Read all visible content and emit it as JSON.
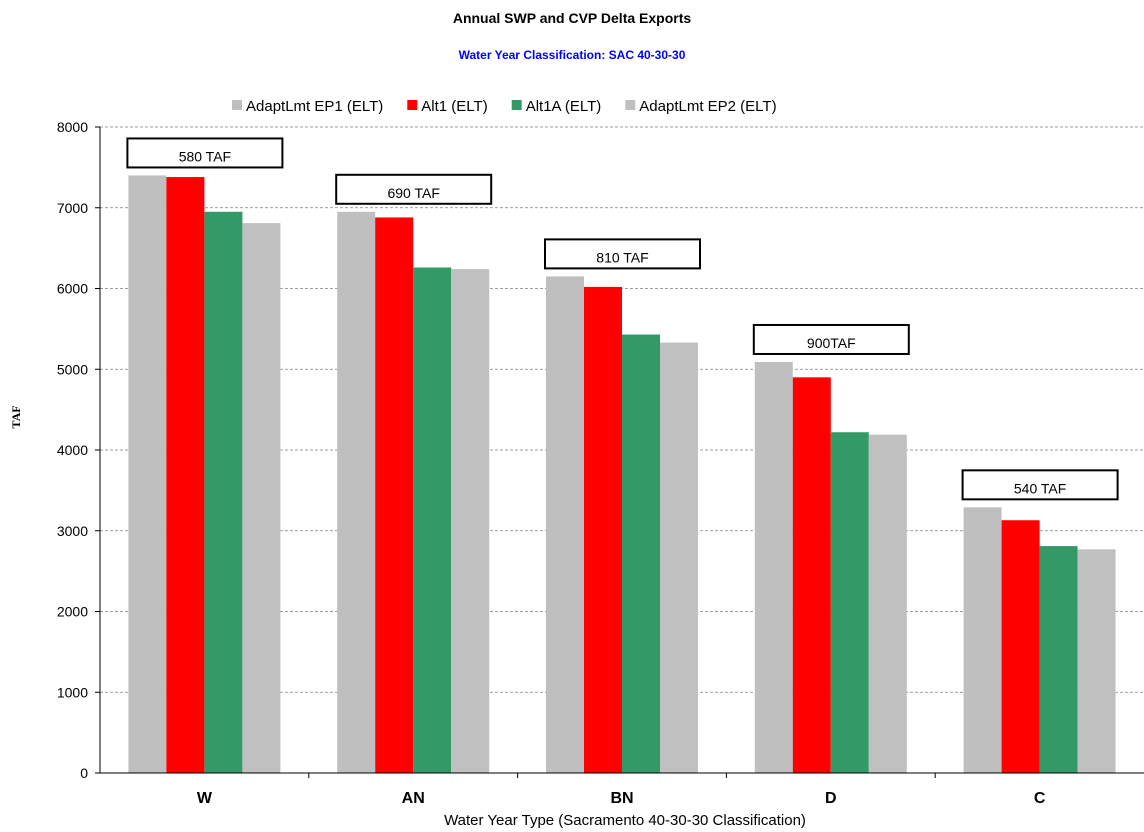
{
  "chart_data": {
    "type": "bar",
    "title": "Annual SWP and CVP Delta Exports",
    "subtitle": "Water Year Classification: SAC 40-30-30",
    "xlabel": "Water Year Type (Sacramento 40-30-30 Classification)",
    "ylabel": "TAF",
    "ylim": [
      0,
      8000
    ],
    "yticks": [
      "0",
      "1000",
      "2000",
      "3000",
      "4000",
      "5000",
      "6000",
      "7000",
      "8000"
    ],
    "grid": true,
    "legend_position": "top",
    "categories": [
      "W",
      "AN",
      "BN",
      "D",
      "C"
    ],
    "series": [
      {
        "name": "AdaptLmt EP1 (ELT)",
        "color": "#bfbfbf",
        "values": [
          7400,
          6950,
          6150,
          5090,
          3290
        ]
      },
      {
        "name": "Alt1 (ELT)",
        "color": "#ff0000",
        "values": [
          7380,
          6880,
          6020,
          4900,
          3130
        ]
      },
      {
        "name": "Alt1A (ELT)",
        "color": "#339966",
        "values": [
          6950,
          6260,
          5430,
          4220,
          2810
        ]
      },
      {
        "name": "AdaptLmt EP2 (ELT)",
        "color": "#c0c0c0",
        "values": [
          6810,
          6240,
          5330,
          4190,
          2770
        ]
      }
    ],
    "annotations": [
      "580 TAF",
      "690 TAF",
      "810 TAF",
      "900TAF",
      "540 TAF"
    ]
  }
}
